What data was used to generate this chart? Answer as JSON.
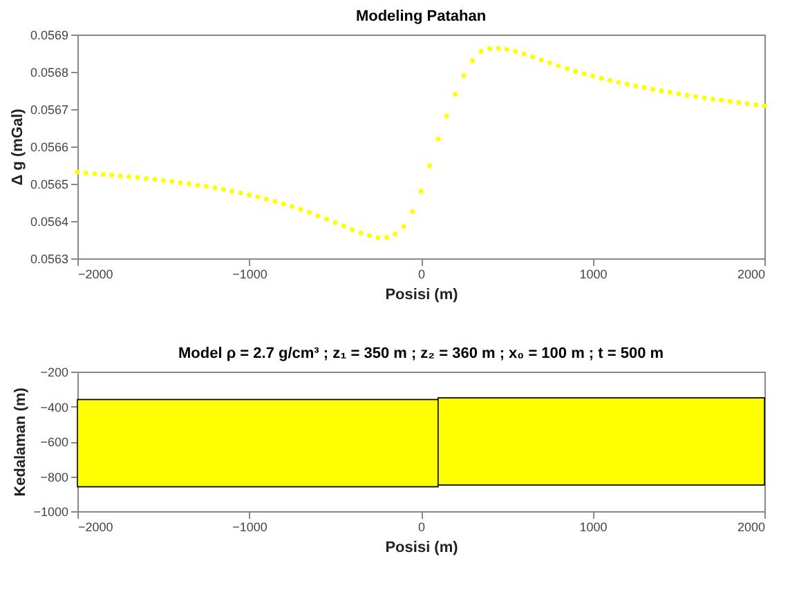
{
  "chart_data": [
    {
      "type": "scatter",
      "title": "Modeling Patahan",
      "xlabel": "Posisi (m)",
      "ylabel": "Δ g (mGal)",
      "marker": "circle",
      "grid": false,
      "legend": false,
      "xlim": [
        -2000,
        2000
      ],
      "xticks": [
        -2000,
        -1000,
        0,
        1000,
        2000
      ],
      "ylim": [
        0.0563,
        0.0569
      ],
      "yticks": [
        0.0563,
        0.0564,
        0.0565,
        0.0566,
        0.0567,
        0.0568,
        0.0569
      ],
      "x": [
        -2000,
        -1950,
        -1900,
        -1850,
        -1800,
        -1750,
        -1700,
        -1650,
        -1600,
        -1550,
        -1500,
        -1450,
        -1400,
        -1350,
        -1300,
        -1250,
        -1200,
        -1150,
        -1100,
        -1050,
        -1000,
        -950,
        -900,
        -850,
        -800,
        -750,
        -700,
        -650,
        -600,
        -550,
        -500,
        -450,
        -400,
        -350,
        -300,
        -250,
        -200,
        -150,
        -100,
        -50,
        0,
        50,
        100,
        150,
        200,
        250,
        300,
        350,
        400,
        450,
        500,
        550,
        600,
        650,
        700,
        750,
        800,
        850,
        900,
        950,
        1000,
        1050,
        1100,
        1150,
        1200,
        1250,
        1300,
        1350,
        1400,
        1450,
        1500,
        1550,
        1600,
        1650,
        1700,
        1750,
        1800,
        1850,
        1900,
        1950,
        2000
      ],
      "series": [
        {
          "color": "#ffff00",
          "values": [
            0.056531,
            0.056529,
            0.056527,
            0.056525,
            0.056523,
            0.056521,
            0.056519,
            0.056517,
            0.056514,
            0.056512,
            0.056509,
            0.056506,
            0.056503,
            0.0565,
            0.056496,
            0.056493,
            0.056489,
            0.056485,
            0.05648,
            0.056475,
            0.05647,
            0.056465,
            0.056459,
            0.056453,
            0.056446,
            0.056439,
            0.056431,
            0.056423,
            0.056414,
            0.056405,
            0.056396,
            0.056387,
            0.056377,
            0.056368,
            0.056361,
            0.056356,
            0.056356,
            0.056365,
            0.056385,
            0.056425,
            0.05648,
            0.056548,
            0.05662,
            0.056682,
            0.05674,
            0.05679,
            0.05683,
            0.056855,
            0.056862,
            0.056863,
            0.05686,
            0.056855,
            0.056848,
            0.05684,
            0.056832,
            0.056824,
            0.056816,
            0.056809,
            0.056802,
            0.056795,
            0.056789,
            0.056783,
            0.056777,
            0.056772,
            0.056767,
            0.056762,
            0.056758,
            0.056753,
            0.056749,
            0.056745,
            0.056741,
            0.056737,
            0.056734,
            0.05673,
            0.056727,
            0.056724,
            0.056721,
            0.056718,
            0.056715,
            0.056712,
            0.056709
          ]
        }
      ]
    },
    {
      "type": "histogram",
      "title": "Model  ρ = 2.7 g/cm³ ; z₁ = 350 m ; z₂ = 360 m ; x₀ = 100 m ; t = 500 m",
      "xlabel": "Posisi (m)",
      "ylabel": "Kedalaman (m)",
      "grid": false,
      "legend": false,
      "xlim": [
        -2000,
        2000
      ],
      "xticks": [
        -2000,
        -1000,
        0,
        1000,
        2000
      ],
      "ylim": [
        -1000,
        -200
      ],
      "yticks": [
        -1000,
        -800,
        -600,
        -400,
        -200
      ],
      "bins": [
        -2000,
        100,
        2000
      ],
      "values": [
        500,
        500
      ],
      "base": [
        -860,
        -850
      ],
      "color": "#ffff00"
    }
  ]
}
